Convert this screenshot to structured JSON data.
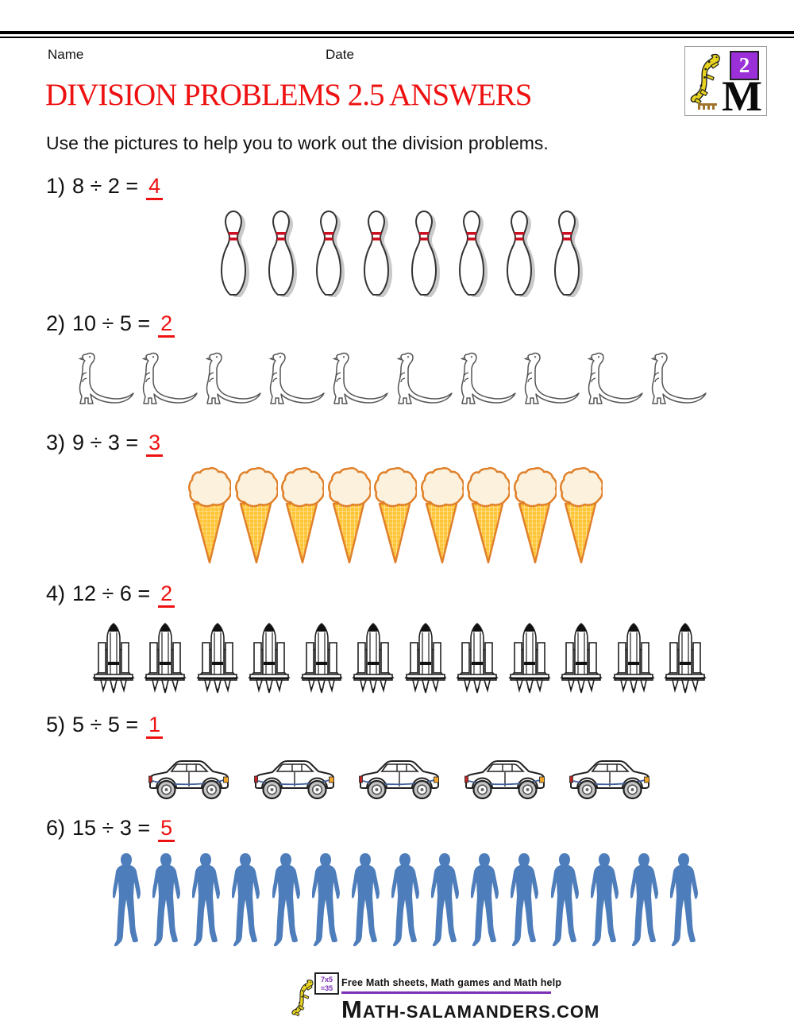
{
  "header": {
    "name_label": "Name",
    "date_label": "Date"
  },
  "logo": {
    "grade_number": "2",
    "letter": "M"
  },
  "title": "DIVISION PROBLEMS 2.5 ANSWERS",
  "instruction": "Use the pictures to help you to work out the division problems.",
  "colors": {
    "title_red": "#ee1111",
    "answer_red": "#ee1111",
    "footer_purple": "#7b2fb5",
    "person_blue": "#4e7dbb",
    "pin_stripe_red": "#cc1122",
    "cone_gold": "#ffc535",
    "scoop_cream": "#fbf1dc",
    "salamander_yellow": "#e8d31f",
    "logo_purple": "#9b30d9"
  },
  "problems": [
    {
      "label": "1)",
      "expression": "8 ÷ 2 =",
      "answer": "4",
      "icon": "bowling-pin-icon",
      "count": 8
    },
    {
      "label": "2)",
      "expression": "10 ÷ 5 =",
      "answer": "2",
      "icon": "dinosaur-icon",
      "count": 10
    },
    {
      "label": "3)",
      "expression": "9 ÷ 3 =",
      "answer": "3",
      "icon": "ice-cream-icon",
      "count": 9
    },
    {
      "label": "4)",
      "expression": "12 ÷ 6 =",
      "answer": "2",
      "icon": "space-shuttle-icon",
      "count": 12
    },
    {
      "label": "5)",
      "expression": "5 ÷ 5 =",
      "answer": "1",
      "icon": "car-icon",
      "count": 5
    },
    {
      "label": "6)",
      "expression": "15 ÷ 3 =",
      "answer": "5",
      "icon": "person-icon",
      "count": 15
    }
  ],
  "footer": {
    "tagline": "Free Math sheets, Math games and Math help",
    "site": "MATH-SALAMANDERS.COM",
    "board_line1": "7x5",
    "board_line2": "=35"
  }
}
